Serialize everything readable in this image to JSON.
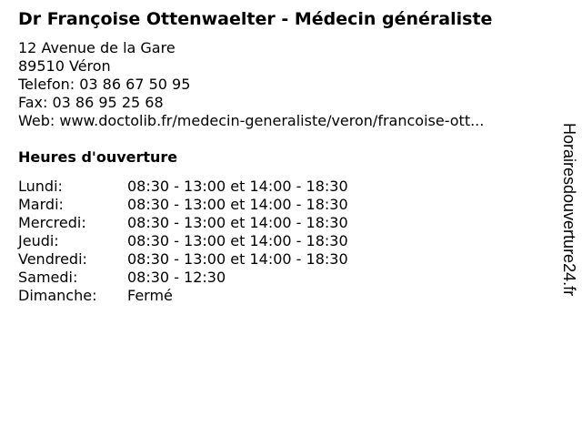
{
  "title": "Dr Françoise Ottenwaelter - Médecin généraliste",
  "address": {
    "street": "12 Avenue de la Gare",
    "city": "89510 Véron",
    "phone": "Telefon: 03 86 67 50 95",
    "fax": "Fax: 03 86 95 25 68",
    "web": "Web: www.doctolib.fr/medecin-generaliste/veron/francoise-ott..."
  },
  "hours_heading": "Heures d'ouverture",
  "hours": [
    {
      "day": "Lundi:",
      "time": "08:30 - 13:00 et 14:00 - 18:30"
    },
    {
      "day": "Mardi:",
      "time": "08:30 - 13:00 et 14:00 - 18:30"
    },
    {
      "day": "Mercredi:",
      "time": "08:30 - 13:00 et 14:00 - 18:30"
    },
    {
      "day": "Jeudi:",
      "time": "08:30 - 13:00 et 14:00 - 18:30"
    },
    {
      "day": "Vendredi:",
      "time": "08:30 - 13:00 et 14:00 - 18:30"
    },
    {
      "day": "Samedi:",
      "time": "08:30 - 12:30"
    },
    {
      "day": "Dimanche:",
      "time": "Fermé"
    }
  ],
  "watermark": "Horairesdouverture24.fr"
}
